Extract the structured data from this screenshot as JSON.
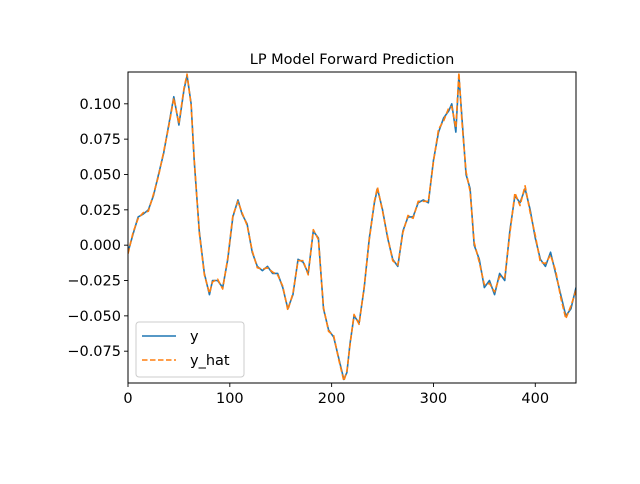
{
  "chart_data": {
    "type": "line",
    "title": "LP Model Forward Prediction",
    "xlabel": "",
    "ylabel": "",
    "xlim": [
      0,
      440
    ],
    "ylim": [
      -0.0975,
      0.1225
    ],
    "xticks": [
      0,
      100,
      200,
      300,
      400
    ],
    "xtick_labels": [
      "0",
      "100",
      "200",
      "300",
      "400"
    ],
    "yticks": [
      -0.075,
      -0.05,
      -0.025,
      0.0,
      0.025,
      0.05,
      0.075,
      0.1
    ],
    "ytick_labels": [
      "−0.075",
      "−0.050",
      "−0.025",
      "0.000",
      "0.025",
      "0.050",
      "0.075",
      "0.100"
    ],
    "grid": false,
    "legend": {
      "position": "lower-left"
    },
    "series": [
      {
        "name": "y",
        "color": "#1f77b4",
        "style": "solid",
        "x": [
          0,
          5,
          10,
          15,
          20,
          25,
          30,
          35,
          40,
          45,
          50,
          55,
          58,
          62,
          65,
          70,
          75,
          80,
          83,
          88,
          93,
          98,
          103,
          108,
          112,
          117,
          122,
          127,
          132,
          137,
          142,
          147,
          152,
          157,
          162,
          167,
          172,
          177,
          182,
          187,
          192,
          197,
          202,
          207,
          212,
          215,
          218,
          222,
          227,
          232,
          237,
          242,
          245,
          250,
          255,
          260,
          265,
          270,
          275,
          280,
          285,
          290,
          295,
          300,
          305,
          310,
          315,
          318,
          322,
          325,
          328,
          332,
          336,
          340,
          345,
          350,
          355,
          360,
          365,
          370,
          375,
          380,
          385,
          390,
          395,
          400,
          405,
          410,
          415,
          420,
          425,
          430,
          435,
          440
        ],
        "y": [
          -0.005,
          0.008,
          0.02,
          0.022,
          0.025,
          0.035,
          0.05,
          0.065,
          0.085,
          0.105,
          0.085,
          0.11,
          0.12,
          0.1,
          0.06,
          0.01,
          -0.02,
          -0.035,
          -0.025,
          -0.025,
          -0.03,
          -0.01,
          0.02,
          0.032,
          0.022,
          0.015,
          -0.005,
          -0.015,
          -0.018,
          -0.015,
          -0.02,
          -0.02,
          -0.03,
          -0.045,
          -0.035,
          -0.01,
          -0.012,
          -0.02,
          0.01,
          0.005,
          -0.045,
          -0.06,
          -0.065,
          -0.08,
          -0.095,
          -0.09,
          -0.07,
          -0.05,
          -0.055,
          -0.03,
          0.005,
          0.03,
          0.04,
          0.025,
          0.005,
          -0.01,
          -0.015,
          0.01,
          0.02,
          0.02,
          0.03,
          0.032,
          0.03,
          0.06,
          0.08,
          0.09,
          0.095,
          0.1,
          0.08,
          0.12,
          0.09,
          0.05,
          0.04,
          0.0,
          -0.01,
          -0.03,
          -0.025,
          -0.035,
          -0.02,
          -0.025,
          0.01,
          0.035,
          0.03,
          0.04,
          0.025,
          0.005,
          -0.01,
          -0.015,
          -0.005,
          -0.02,
          -0.035,
          -0.05,
          -0.045,
          -0.03
        ]
      },
      {
        "name": "y_hat",
        "color": "#ff7f0e",
        "style": "dashed",
        "x": [
          0,
          5,
          10,
          15,
          20,
          25,
          30,
          35,
          40,
          45,
          50,
          55,
          58,
          62,
          65,
          70,
          75,
          80,
          83,
          88,
          93,
          98,
          103,
          108,
          112,
          117,
          122,
          127,
          132,
          137,
          142,
          147,
          152,
          157,
          162,
          167,
          172,
          177,
          182,
          187,
          192,
          197,
          202,
          207,
          212,
          215,
          218,
          222,
          227,
          232,
          237,
          242,
          245,
          250,
          255,
          260,
          265,
          270,
          275,
          280,
          285,
          290,
          295,
          300,
          305,
          310,
          315,
          318,
          322,
          325,
          328,
          332,
          336,
          340,
          345,
          350,
          355,
          360,
          365,
          370,
          375,
          380,
          385,
          390,
          395,
          400,
          405,
          410,
          415,
          420,
          425,
          430,
          435,
          440
        ],
        "y": [
          -0.006,
          0.009,
          0.019,
          0.023,
          0.024,
          0.036,
          0.049,
          0.066,
          0.084,
          0.104,
          0.086,
          0.111,
          0.121,
          0.099,
          0.061,
          0.009,
          -0.021,
          -0.034,
          -0.026,
          -0.024,
          -0.031,
          -0.009,
          0.021,
          0.031,
          0.023,
          0.014,
          -0.004,
          -0.016,
          -0.017,
          -0.016,
          -0.019,
          -0.021,
          -0.029,
          -0.046,
          -0.034,
          -0.011,
          -0.011,
          -0.021,
          0.011,
          0.004,
          -0.044,
          -0.061,
          -0.064,
          -0.081,
          -0.096,
          -0.089,
          -0.071,
          -0.049,
          -0.056,
          -0.029,
          0.004,
          0.031,
          0.041,
          0.024,
          0.006,
          -0.011,
          -0.014,
          0.009,
          0.021,
          0.019,
          0.031,
          0.031,
          0.031,
          0.059,
          0.082,
          0.088,
          0.097,
          0.098,
          0.083,
          0.122,
          0.087,
          0.052,
          0.038,
          0.002,
          -0.012,
          -0.028,
          -0.027,
          -0.033,
          -0.022,
          -0.023,
          0.008,
          0.037,
          0.028,
          0.042,
          0.023,
          0.007,
          -0.012,
          -0.013,
          -0.007,
          -0.018,
          -0.037,
          -0.052,
          -0.043,
          -0.032
        ]
      }
    ]
  }
}
